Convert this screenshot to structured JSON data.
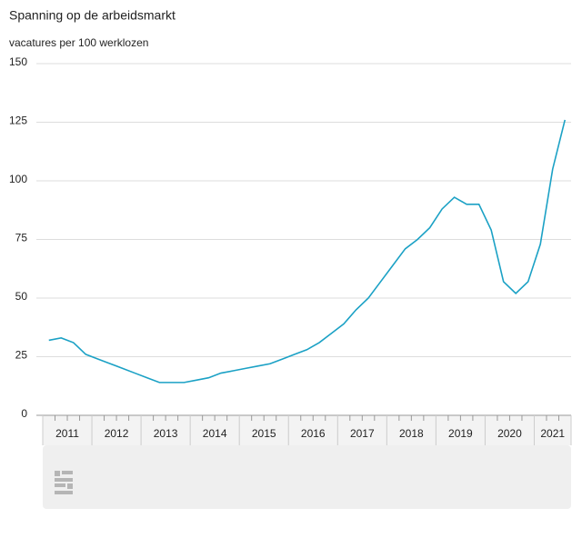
{
  "chart_data": {
    "type": "line",
    "title": "Spanning op de arbeidsmarkt",
    "y_label": "vacatures per 100 werklozen",
    "x": [
      2011,
      2011.25,
      2011.5,
      2011.75,
      2012,
      2012.25,
      2012.5,
      2012.75,
      2013,
      2013.25,
      2013.5,
      2013.75,
      2014,
      2014.25,
      2014.5,
      2014.75,
      2015,
      2015.25,
      2015.5,
      2015.75,
      2016,
      2016.25,
      2016.5,
      2016.75,
      2017,
      2017.25,
      2017.5,
      2017.75,
      2018,
      2018.25,
      2018.5,
      2018.75,
      2019,
      2019.25,
      2019.5,
      2019.75,
      2020,
      2020.25,
      2020.5,
      2020.75,
      2021,
      2021.25,
      2021.5
    ],
    "series": [
      {
        "color": "#1ba1c5",
        "values": [
          32,
          33,
          31,
          26,
          24,
          22,
          20,
          18,
          16,
          14,
          14,
          14,
          15,
          16,
          18,
          19,
          20,
          21,
          22,
          24,
          26,
          28,
          31,
          35,
          39,
          45,
          50,
          57,
          64,
          71,
          75,
          80,
          88,
          93,
          90,
          90,
          79,
          57,
          52,
          57,
          73,
          105,
          126
        ]
      }
    ],
    "xlim": [
      2011,
      2021.75
    ],
    "xticks": [
      2011,
      2012,
      2013,
      2014,
      2015,
      2016,
      2017,
      2018,
      2019,
      2020,
      2021
    ],
    "ylim": [
      0,
      150
    ],
    "yticks": [
      0,
      25,
      50,
      75,
      100,
      125,
      150
    ],
    "grid": true
  }
}
